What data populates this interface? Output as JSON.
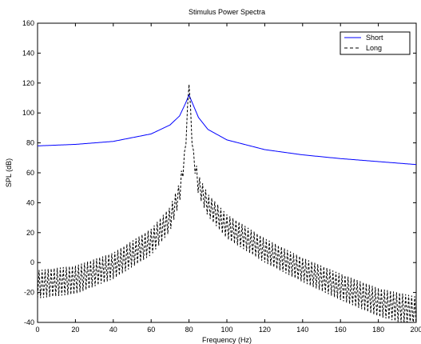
{
  "chart_data": {
    "type": "line",
    "title": "Stimulus Power Spectra",
    "xlabel": "Frequency (Hz)",
    "ylabel": "SPL (dB)",
    "xlim": [
      0,
      200
    ],
    "ylim": [
      -40,
      160
    ],
    "xticks": [
      0,
      20,
      40,
      60,
      80,
      100,
      120,
      140,
      160,
      180,
      200
    ],
    "yticks": [
      -40,
      -20,
      0,
      20,
      40,
      60,
      80,
      100,
      120,
      140,
      160
    ],
    "grid": false,
    "legend_position": "top-right",
    "series": [
      {
        "name": "Short",
        "color": "#0000ff",
        "style": "solid",
        "x": [
          0,
          20,
          40,
          60,
          70,
          75,
          78,
          80,
          82,
          85,
          90,
          100,
          120,
          140,
          160,
          180,
          200
        ],
        "y": [
          78,
          79,
          81,
          86,
          92,
          98,
          106,
          112,
          106,
          97,
          89,
          82,
          75.5,
          72,
          69.5,
          67.5,
          65.5
        ]
      },
      {
        "name": "Long",
        "color": "#000000",
        "style": "dashed",
        "x": [
          0,
          20,
          40,
          60,
          70,
          75,
          78,
          79.5,
          80,
          80.5,
          82,
          85,
          90,
          100,
          120,
          140,
          160,
          180,
          200
        ],
        "y": [
          -10,
          -7,
          2,
          18,
          33,
          50,
          75,
          110,
          119,
          110,
          75,
          55,
          42,
          28,
          12,
          -1,
          -12,
          -22,
          -28
        ],
        "ripple": [
          14,
          14,
          13,
          13,
          12,
          10,
          6,
          2,
          0,
          2,
          6,
          10,
          11,
          12,
          12,
          12,
          13,
          14,
          15
        ]
      }
    ]
  }
}
